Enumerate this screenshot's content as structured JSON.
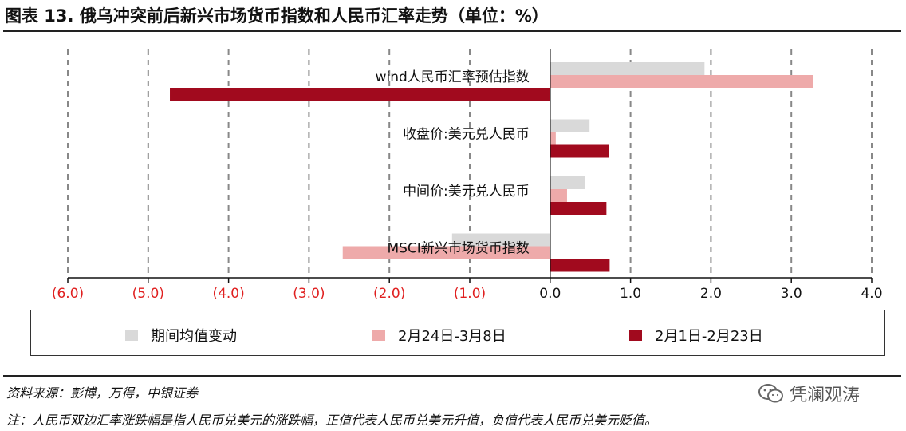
{
  "figure": {
    "title": "图表 13. 俄乌冲突前后新兴市场货币指数和人民币汇率走势（单位：%）",
    "source": "资料来源：彭博，万得，中银证券",
    "note": "注：人民币双边汇率涨跌幅是指人民币兑美元的涨跌幅，正值代表人民币兑美元升值，负值代表人民币兑美元贬值。",
    "watermark": "凭澜观涛",
    "watermark_icon": "wechat-icon"
  },
  "chart_data": {
    "type": "bar",
    "orientation": "horizontal",
    "categories": [
      "wind人民币汇率预估指数",
      "收盘价:美元兑人民币",
      "中间价:美元兑人民币",
      "MSCI新兴市场货币指数"
    ],
    "series": [
      {
        "name": "期间均值变动",
        "values": [
          1.92,
          0.49,
          0.43,
          -1.22
        ],
        "color": "#d9d9d9"
      },
      {
        "name": "2月24日-3月8日",
        "values": [
          3.27,
          0.07,
          0.21,
          -2.58
        ],
        "color": "#eeaaaa"
      },
      {
        "name": "2月1日-2月23日",
        "values": [
          -4.73,
          0.73,
          0.7,
          0.74
        ],
        "color": "#a10a1e"
      }
    ],
    "xlim": [
      -6.0,
      4.0
    ],
    "xticks": [
      {
        "value": -6.0,
        "label": "(6.0)"
      },
      {
        "value": -5.0,
        "label": "(5.0)"
      },
      {
        "value": -4.0,
        "label": "(4.0)"
      },
      {
        "value": -3.0,
        "label": "(3.0)"
      },
      {
        "value": -2.0,
        "label": "(2.0)"
      },
      {
        "value": -1.0,
        "label": "(1.0)"
      },
      {
        "value": 0.0,
        "label": "0.0"
      },
      {
        "value": 1.0,
        "label": "1.0"
      },
      {
        "value": 2.0,
        "label": "2.0"
      },
      {
        "value": 3.0,
        "label": "3.0"
      },
      {
        "value": 4.0,
        "label": "4.0"
      }
    ],
    "negative_tick_color": "#e02020",
    "positive_tick_color": "#111111",
    "grid": "vertical-dashed",
    "legend_position": "bottom"
  }
}
